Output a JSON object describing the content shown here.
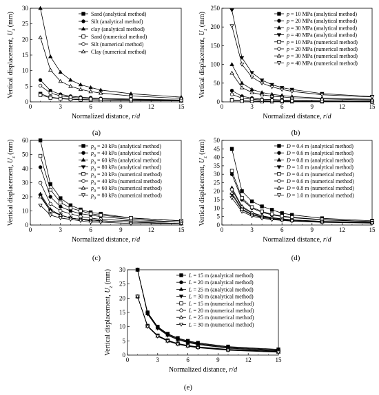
{
  "chart_data": [
    {
      "type": "line",
      "panel_label": "(a)",
      "xlabel": "Normalized distance, r/d",
      "ylabel": "Vertical displacement, Uz (mm)",
      "xlim": [
        0,
        15
      ],
      "ylim": [
        0,
        30
      ],
      "xticks": [
        0,
        3,
        6,
        9,
        12,
        15
      ],
      "yticks": [
        0,
        5,
        10,
        15,
        20,
        25,
        30
      ],
      "legend_position": "top-right",
      "x": [
        1,
        2,
        3,
        4,
        5,
        6,
        7,
        10,
        15
      ],
      "series": [
        {
          "name": "Sand (analytical method)",
          "marker": "square-filled",
          "values": [
            2.6,
            1.5,
            1.1,
            0.9,
            0.8,
            0.7,
            0.6,
            0.5,
            0.4
          ]
        },
        {
          "name": "Silt (analytical method)",
          "marker": "circle-filled",
          "values": [
            7.0,
            3.6,
            2.4,
            1.8,
            1.5,
            1.3,
            1.1,
            0.9,
            0.6
          ]
        },
        {
          "name": "clay (analytical method)",
          "marker": "triangle-filled",
          "values": [
            30.0,
            14.5,
            9.5,
            7.0,
            5.5,
            4.6,
            3.8,
            2.6,
            1.5
          ]
        },
        {
          "name": "Sand (numerical method)",
          "marker": "square-open",
          "values": [
            2.2,
            1.3,
            1.0,
            0.8,
            0.7,
            0.6,
            0.5,
            0.4,
            0.3
          ]
        },
        {
          "name": "Silt (numerical method)",
          "marker": "circle-open",
          "values": [
            5.2,
            2.8,
            1.9,
            1.5,
            1.2,
            1.0,
            0.9,
            0.7,
            0.5
          ]
        },
        {
          "name": "Clay (numerical method)",
          "marker": "triangle-open",
          "values": [
            20.6,
            10.2,
            6.6,
            5.0,
            4.0,
            3.3,
            2.8,
            1.9,
            1.1
          ]
        }
      ]
    },
    {
      "type": "line",
      "panel_label": "(b)",
      "xlabel": "Normalized distance, r/d",
      "ylabel": "Vertical displacement, Uz (mm)",
      "xlim": [
        0,
        15
      ],
      "ylim": [
        0,
        250
      ],
      "xticks": [
        0,
        3,
        6,
        9,
        12,
        15
      ],
      "yticks": [
        0,
        50,
        100,
        150,
        200,
        250
      ],
      "legend_position": "top-right",
      "x": [
        1,
        2,
        3,
        4,
        5,
        6,
        7,
        10,
        15
      ],
      "series": [
        {
          "name": "p = 10 MPa (analytical method)",
          "marker": "square-filled",
          "values": [
            5,
            3,
            2,
            2,
            1,
            1,
            1,
            1,
            1
          ]
        },
        {
          "name": "p = 20 MPa (analytical method)",
          "marker": "circle-filled",
          "values": [
            30,
            15,
            10,
            7,
            6,
            5,
            4,
            3,
            2
          ]
        },
        {
          "name": "p = 30 MPa (analytical method)",
          "marker": "triangle-filled",
          "values": [
            100,
            50,
            33,
            25,
            20,
            17,
            14,
            10,
            7
          ]
        },
        {
          "name": "p = 40 MPa (analytical method)",
          "marker": "triangle-down-filled",
          "values": [
            245,
            118,
            78,
            58,
            46,
            38,
            33,
            22,
            14
          ]
        },
        {
          "name": "p = 10 MPa (numerical method)",
          "marker": "square-open",
          "values": [
            4,
            2,
            2,
            1,
            1,
            1,
            1,
            1,
            0
          ]
        },
        {
          "name": "p = 20 MPa (numerical method)",
          "marker": "circle-open",
          "values": [
            20,
            10,
            7,
            5,
            4,
            3,
            3,
            2,
            1
          ]
        },
        {
          "name": "p = 30 MPa (numerical method)",
          "marker": "triangle-open",
          "values": [
            77,
            38,
            25,
            19,
            15,
            13,
            11,
            8,
            5
          ]
        },
        {
          "name": "p = 40 MPa (numerical method)",
          "marker": "triangle-down-open",
          "values": [
            203,
            100,
            66,
            50,
            40,
            33,
            28,
            19,
            13
          ]
        }
      ]
    },
    {
      "type": "line",
      "panel_label": "(c)",
      "xlabel": "Normalized distance, r/d",
      "ylabel": "Vertical displacement, Uz (mm)",
      "xlim": [
        0,
        15
      ],
      "ylim": [
        0,
        60
      ],
      "xticks": [
        0,
        3,
        6,
        9,
        12,
        15
      ],
      "yticks": [
        0,
        10,
        20,
        30,
        40,
        50,
        60
      ],
      "legend_position": "top-right",
      "x": [
        1,
        2,
        3,
        4,
        5,
        6,
        7,
        10,
        15
      ],
      "series": [
        {
          "name": "p0 = 20 kPa (analytical method)",
          "marker": "square-filled",
          "values": [
            60,
            29,
            19,
            14,
            11,
            9,
            8,
            5,
            3
          ]
        },
        {
          "name": "p0 = 40 kPa (analytical method)",
          "marker": "circle-filled",
          "values": [
            41,
            20,
            13,
            10,
            8,
            7,
            6,
            4,
            2
          ]
        },
        {
          "name": "p0 = 60 kPa (analytical method)",
          "marker": "triangle-filled",
          "values": [
            22,
            11,
            7,
            5,
            4,
            4,
            3,
            2,
            1
          ]
        },
        {
          "name": "p0 = 80 kPa (analytical method)",
          "marker": "triangle-down-filled",
          "values": [
            21,
            10,
            7,
            5,
            4,
            3,
            3,
            2,
            1
          ]
        },
        {
          "name": "p0 = 20 kPa (numerical method)",
          "marker": "square-open",
          "values": [
            49,
            25,
            16,
            12,
            10,
            8,
            7,
            5,
            3
          ]
        },
        {
          "name": "p0 = 40 kPa (numerical method)",
          "marker": "circle-open",
          "values": [
            30,
            15,
            10,
            8,
            6,
            5,
            4,
            3,
            2
          ]
        },
        {
          "name": "p0 = 60 kPa (numerical method)",
          "marker": "triangle-open",
          "values": [
            20,
            10,
            7,
            5,
            4,
            3,
            3,
            2,
            1
          ]
        },
        {
          "name": "p0 = 80 kPa (numerical method)",
          "marker": "triangle-down-open",
          "values": [
            14,
            7,
            5,
            4,
            3,
            2,
            2,
            1,
            1
          ]
        }
      ]
    },
    {
      "type": "line",
      "panel_label": "(d)",
      "xlabel": "Normalized distance, r/d",
      "ylabel": "Vertical displacement, Uz (mm)",
      "xlim": [
        0,
        15
      ],
      "ylim": [
        0,
        50
      ],
      "xticks": [
        0,
        3,
        6,
        9,
        12,
        15
      ],
      "yticks": [
        0,
        5,
        10,
        15,
        20,
        25,
        30,
        35,
        40,
        45,
        50
      ],
      "legend_position": "top-right",
      "x": [
        1,
        2,
        3,
        4,
        5,
        6,
        7,
        10,
        15
      ],
      "series": [
        {
          "name": "D = 0.4 m (analytical method)",
          "marker": "square-filled",
          "values": [
            45,
            20,
            14,
            11,
            9,
            7,
            6,
            4,
            2.5
          ]
        },
        {
          "name": "D = 0.6 m (analytical method)",
          "marker": "circle-filled",
          "values": [
            30,
            15,
            10,
            7.5,
            6,
            5,
            4.3,
            3,
            2
          ]
        },
        {
          "name": "D = 0.8 m (analytical method)",
          "marker": "triangle-filled",
          "values": [
            22,
            11,
            7.3,
            5.5,
            4.4,
            3.7,
            3.1,
            2.2,
            1.5
          ]
        },
        {
          "name": "D = 1.0 m (analytical method)",
          "marker": "triangle-down-filled",
          "values": [
            18,
            9,
            6,
            4.5,
            3.6,
            3,
            2.6,
            1.8,
            1.2
          ]
        },
        {
          "name": "D = 0.4 m (numerical method)",
          "marker": "square-open",
          "values": [
            32,
            16,
            10.5,
            8,
            6.4,
            5.3,
            4.6,
            3.2,
            2.1
          ]
        },
        {
          "name": "D = 0.6 m (numerical method)",
          "marker": "circle-open",
          "values": [
            21,
            10.5,
            7,
            5.3,
            4.2,
            3.5,
            3,
            2.1,
            1.4
          ]
        },
        {
          "name": "D = 0.8 m (numerical method)",
          "marker": "triangle-open",
          "values": [
            19,
            9.5,
            6.3,
            4.8,
            3.8,
            3.2,
            2.7,
            1.9,
            1.3
          ]
        },
        {
          "name": "D = 1.0 m (numerical method)",
          "marker": "triangle-down-open",
          "values": [
            16,
            8,
            5.3,
            4,
            3.2,
            2.7,
            2.3,
            1.6,
            1.1
          ]
        }
      ]
    },
    {
      "type": "line",
      "panel_label": "(e)",
      "xlabel": "Normalized distance, r/d",
      "ylabel": "Vertical displacement, Uz (mm)",
      "xlim": [
        0,
        15
      ],
      "ylim": [
        0,
        30
      ],
      "xticks": [
        0,
        3,
        6,
        9,
        12,
        15
      ],
      "yticks": [
        0,
        5,
        10,
        15,
        20,
        25,
        30
      ],
      "legend_position": "top-right",
      "x": [
        1,
        2,
        3,
        4,
        5,
        6,
        7,
        10,
        15
      ],
      "series": [
        {
          "name": "L = 15 m (analytical method)",
          "marker": "square-filled",
          "values": [
            30,
            15,
            10,
            7.5,
            6,
            5,
            4.3,
            3,
            2
          ]
        },
        {
          "name": "L = 20 m (analytical method)",
          "marker": "circle-filled",
          "values": [
            30,
            14.8,
            9.8,
            7.3,
            5.8,
            4.8,
            4.1,
            2.8,
            1.8
          ]
        },
        {
          "name": "L = 25 m (analytical method)",
          "marker": "triangle-filled",
          "values": [
            30,
            14.6,
            9.6,
            7.1,
            5.6,
            4.6,
            3.9,
            2.6,
            1.6
          ]
        },
        {
          "name": "L = 30 m (analytical method)",
          "marker": "triangle-down-filled",
          "values": [
            30,
            14.4,
            9.4,
            6.9,
            5.4,
            4.4,
            3.7,
            2.4,
            1.4
          ]
        },
        {
          "name": "L = 15 m (numerical method)",
          "marker": "square-open",
          "values": [
            20.6,
            10.3,
            6.9,
            5.2,
            4.1,
            3.4,
            2.9,
            2,
            1.3
          ]
        },
        {
          "name": "L = 20 m (numerical method)",
          "marker": "circle-open",
          "values": [
            20.6,
            10.2,
            6.8,
            5.1,
            4,
            3.3,
            2.8,
            1.9,
            1.2
          ]
        },
        {
          "name": "L = 25 m (numerical method)",
          "marker": "triangle-open",
          "values": [
            20.6,
            10.1,
            6.7,
            5,
            3.9,
            3.2,
            2.7,
            1.8,
            1.1
          ]
        },
        {
          "name": "L = 30 m (numerical method)",
          "marker": "triangle-down-open",
          "values": [
            20.6,
            10,
            6.6,
            4.9,
            3.8,
            3.1,
            2.6,
            1.7,
            1
          ]
        }
      ]
    }
  ]
}
